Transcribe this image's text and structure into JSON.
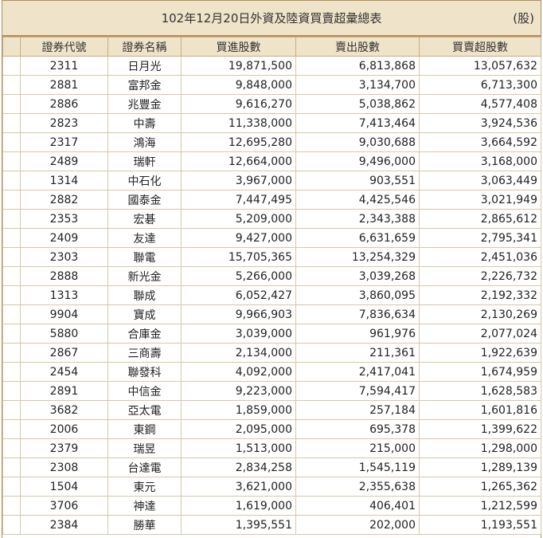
{
  "header": {
    "title": "102年12月20日外資及陸資買賣超彙總表",
    "unit": "(股)"
  },
  "columns": [
    "證券代號",
    "證券名稱",
    "買進股數",
    "賣出股數",
    "買賣超股數"
  ],
  "rows": [
    {
      "code": "2311",
      "name": "日月光",
      "buy": "19,871,500",
      "sell": "6,813,868",
      "net": "13,057,632"
    },
    {
      "code": "2881",
      "name": "富邦金",
      "buy": "9,848,000",
      "sell": "3,134,700",
      "net": "6,713,300"
    },
    {
      "code": "2886",
      "name": "兆豐金",
      "buy": "9,616,270",
      "sell": "5,038,862",
      "net": "4,577,408"
    },
    {
      "code": "2823",
      "name": "中壽",
      "buy": "11,338,000",
      "sell": "7,413,464",
      "net": "3,924,536"
    },
    {
      "code": "2317",
      "name": "鴻海",
      "buy": "12,695,280",
      "sell": "9,030,688",
      "net": "3,664,592"
    },
    {
      "code": "2489",
      "name": "瑞軒",
      "buy": "12,664,000",
      "sell": "9,496,000",
      "net": "3,168,000"
    },
    {
      "code": "1314",
      "name": "中石化",
      "buy": "3,967,000",
      "sell": "903,551",
      "net": "3,063,449"
    },
    {
      "code": "2882",
      "name": "國泰金",
      "buy": "7,447,495",
      "sell": "4,425,546",
      "net": "3,021,949"
    },
    {
      "code": "2353",
      "name": "宏碁",
      "buy": "5,209,000",
      "sell": "2,343,388",
      "net": "2,865,612"
    },
    {
      "code": "2409",
      "name": "友達",
      "buy": "9,427,000",
      "sell": "6,631,659",
      "net": "2,795,341"
    },
    {
      "code": "2303",
      "name": "聯電",
      "buy": "15,705,365",
      "sell": "13,254,329",
      "net": "2,451,036"
    },
    {
      "code": "2888",
      "name": "新光金",
      "buy": "5,266,000",
      "sell": "3,039,268",
      "net": "2,226,732"
    },
    {
      "code": "1313",
      "name": "聯成",
      "buy": "6,052,427",
      "sell": "3,860,095",
      "net": "2,192,332"
    },
    {
      "code": "9904",
      "name": "寶成",
      "buy": "9,966,903",
      "sell": "7,836,634",
      "net": "2,130,269"
    },
    {
      "code": "5880",
      "name": "合庫金",
      "buy": "3,039,000",
      "sell": "961,976",
      "net": "2,077,024"
    },
    {
      "code": "2867",
      "name": "三商壽",
      "buy": "2,134,000",
      "sell": "211,361",
      "net": "1,922,639"
    },
    {
      "code": "2454",
      "name": "聯發科",
      "buy": "4,092,000",
      "sell": "2,417,041",
      "net": "1,674,959"
    },
    {
      "code": "2891",
      "name": "中信金",
      "buy": "9,223,000",
      "sell": "7,594,417",
      "net": "1,628,583"
    },
    {
      "code": "3682",
      "name": "亞太電",
      "buy": "1,859,000",
      "sell": "257,184",
      "net": "1,601,816"
    },
    {
      "code": "2006",
      "name": "東鋼",
      "buy": "2,095,000",
      "sell": "695,378",
      "net": "1,399,622"
    },
    {
      "code": "2379",
      "name": "瑞昱",
      "buy": "1,513,000",
      "sell": "215,000",
      "net": "1,298,000"
    },
    {
      "code": "2308",
      "name": "台達電",
      "buy": "2,834,258",
      "sell": "1,545,119",
      "net": "1,289,139"
    },
    {
      "code": "1504",
      "name": "東元",
      "buy": "3,621,000",
      "sell": "2,355,638",
      "net": "1,265,362"
    },
    {
      "code": "3706",
      "name": "神達",
      "buy": "1,619,000",
      "sell": "406,401",
      "net": "1,212,599"
    },
    {
      "code": "2384",
      "name": "勝華",
      "buy": "1,395,551",
      "sell": "202,000",
      "net": "1,193,551"
    }
  ]
}
